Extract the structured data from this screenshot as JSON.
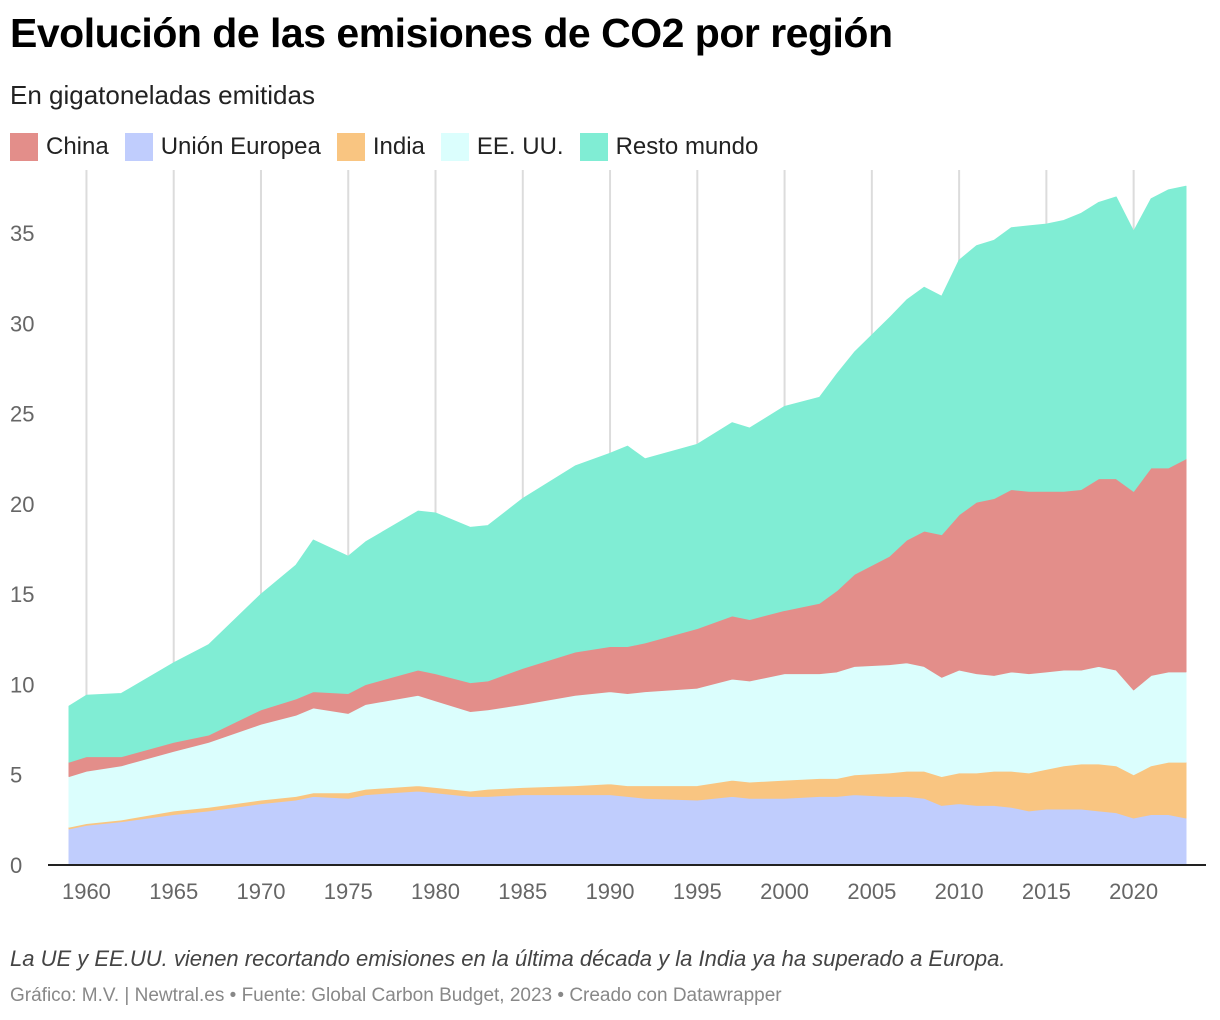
{
  "header": {
    "title": "Evolución de las emisiones de CO2 por región",
    "subtitle": "En gigatoneladas emitidas"
  },
  "legend": [
    {
      "label": "China",
      "color": "#e38e8a"
    },
    {
      "label": "Unión Europea",
      "color": "#c0cdfd"
    },
    {
      "label": "India",
      "color": "#f9c581"
    },
    {
      "label": "EE. UU.",
      "color": "#dbfefd"
    },
    {
      "label": "Resto mundo",
      "color": "#80edd4"
    }
  ],
  "footer": {
    "note": "La UE y EE.UU. vienen recortando emisiones en la última década y la India ya ha superado a Europa.",
    "credit": "Gráfico: M.V. | Newtral.es • Fuente: Global Carbon Budget, 2023 • Creado con Datawrapper"
  },
  "chart_data": {
    "type": "area",
    "stacked": true,
    "title": "Evolución de las emisiones de CO2 por región",
    "subtitle": "En gigatoneladas emitidas",
    "xlabel": "",
    "ylabel": "",
    "xlim": [
      1959,
      2023
    ],
    "ylim": [
      0,
      37.5
    ],
    "x_ticks": [
      1960,
      1965,
      1970,
      1975,
      1980,
      1985,
      1990,
      1995,
      2000,
      2005,
      2010,
      2015,
      2020
    ],
    "y_ticks": [
      0,
      5,
      10,
      15,
      20,
      25,
      30,
      35
    ],
    "grid": "vertical",
    "x": [
      1959,
      1960,
      1962,
      1965,
      1967,
      1970,
      1972,
      1973,
      1975,
      1976,
      1979,
      1980,
      1982,
      1983,
      1985,
      1988,
      1990,
      1991,
      1992,
      1995,
      1997,
      1998,
      2000,
      2002,
      2003,
      2004,
      2006,
      2007,
      2008,
      2009,
      2010,
      2011,
      2012,
      2013,
      2014,
      2015,
      2016,
      2017,
      2018,
      2019,
      2020,
      2021,
      2022,
      2023
    ],
    "series": [
      {
        "name": "Unión Europea",
        "color": "#c0cdfd",
        "values": [
          2.0,
          2.2,
          2.4,
          2.8,
          3.0,
          3.4,
          3.6,
          3.8,
          3.7,
          3.9,
          4.1,
          4.0,
          3.8,
          3.8,
          3.9,
          3.9,
          3.9,
          3.8,
          3.7,
          3.6,
          3.8,
          3.7,
          3.7,
          3.8,
          3.8,
          3.9,
          3.8,
          3.8,
          3.7,
          3.3,
          3.4,
          3.3,
          3.3,
          3.2,
          3.0,
          3.1,
          3.1,
          3.1,
          3.0,
          2.9,
          2.6,
          2.8,
          2.8,
          2.6
        ]
      },
      {
        "name": "India",
        "color": "#f9c581",
        "values": [
          0.1,
          0.1,
          0.1,
          0.2,
          0.2,
          0.2,
          0.2,
          0.2,
          0.3,
          0.3,
          0.3,
          0.3,
          0.3,
          0.4,
          0.4,
          0.5,
          0.6,
          0.6,
          0.7,
          0.8,
          0.9,
          0.9,
          1.0,
          1.0,
          1.0,
          1.1,
          1.3,
          1.4,
          1.5,
          1.6,
          1.7,
          1.8,
          1.9,
          2.0,
          2.1,
          2.2,
          2.4,
          2.5,
          2.6,
          2.6,
          2.4,
          2.7,
          2.9,
          3.1
        ]
      },
      {
        "name": "EE. UU.",
        "color": "#dbfefd",
        "values": [
          2.8,
          2.9,
          3.0,
          3.3,
          3.6,
          4.2,
          4.5,
          4.7,
          4.4,
          4.7,
          5.0,
          4.8,
          4.4,
          4.4,
          4.6,
          5.0,
          5.1,
          5.1,
          5.2,
          5.4,
          5.6,
          5.6,
          5.9,
          5.8,
          5.9,
          6.0,
          6.0,
          6.0,
          5.8,
          5.5,
          5.7,
          5.5,
          5.3,
          5.5,
          5.5,
          5.4,
          5.3,
          5.2,
          5.4,
          5.3,
          4.7,
          5.0,
          5.0,
          5.0
        ]
      },
      {
        "name": "China",
        "color": "#e38e8a",
        "values": [
          0.8,
          0.8,
          0.5,
          0.5,
          0.4,
          0.8,
          0.9,
          0.9,
          1.1,
          1.1,
          1.4,
          1.5,
          1.6,
          1.6,
          2.0,
          2.4,
          2.5,
          2.6,
          2.7,
          3.3,
          3.5,
          3.4,
          3.5,
          3.9,
          4.5,
          5.1,
          6.0,
          6.8,
          7.5,
          7.9,
          8.6,
          9.5,
          9.8,
          10.1,
          10.1,
          10.0,
          9.9,
          10.0,
          10.4,
          10.6,
          11.0,
          11.5,
          11.3,
          11.8
        ]
      },
      {
        "name": "Resto mundo",
        "color": "#80edd4",
        "values": [
          3.1,
          3.4,
          3.5,
          4.4,
          5.0,
          6.4,
          7.4,
          8.4,
          7.6,
          7.9,
          8.8,
          8.9,
          8.6,
          8.6,
          9.4,
          10.3,
          10.7,
          11.1,
          10.2,
          10.2,
          10.7,
          10.6,
          11.3,
          11.4,
          12.0,
          12.3,
          13.2,
          13.3,
          13.5,
          13.2,
          14.1,
          14.2,
          14.3,
          14.5,
          14.7,
          14.8,
          15.0,
          15.3,
          15.3,
          15.6,
          14.4,
          14.9,
          15.4,
          15.1
        ]
      }
    ]
  }
}
